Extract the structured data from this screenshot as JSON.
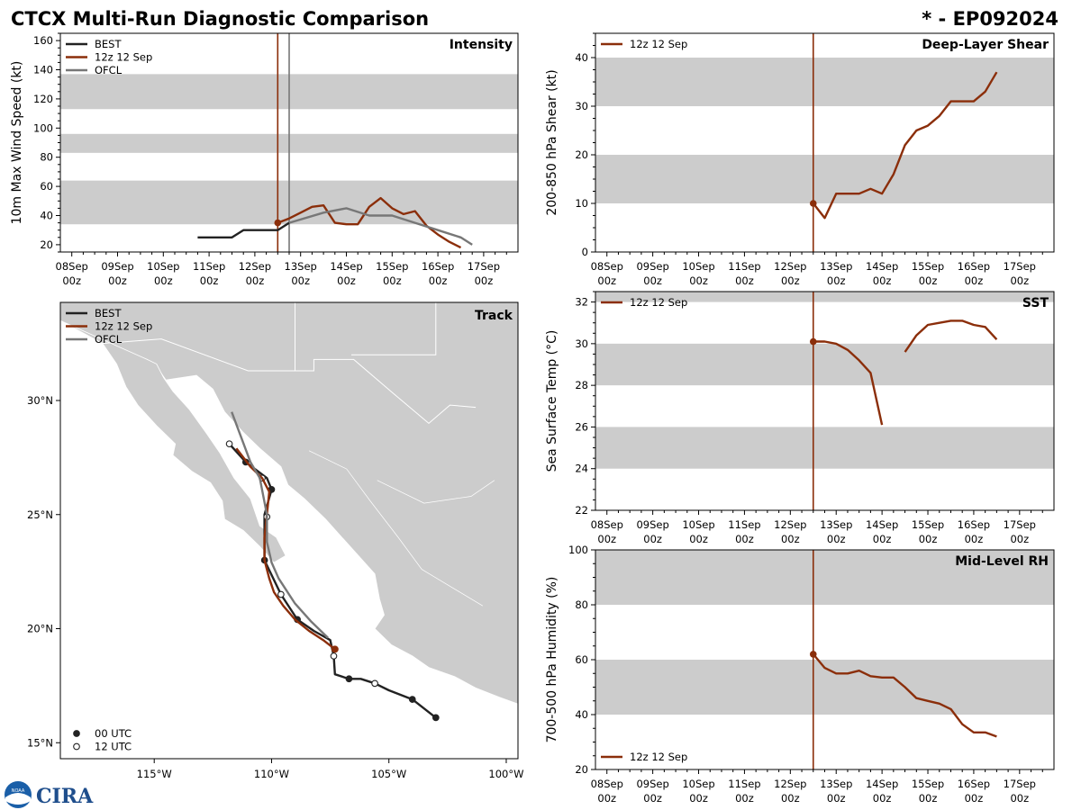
{
  "header": {
    "title": "CTCX Multi-Run Diagnostic Comparison",
    "storm": "* - EP092024"
  },
  "colors": {
    "best": "#222222",
    "run": "#8b2e0a",
    "ofcl": "#777777",
    "band": "#cccccc",
    "land": "#cccccc"
  },
  "time_ticks": {
    "days": [
      "08Sep",
      "09Sep",
      "10Sep",
      "11Sep",
      "12Sep",
      "13Sep",
      "14Sep",
      "15Sep",
      "16Sep",
      "17Sep"
    ],
    "hour": "00z"
  },
  "run_time": 4.5,
  "ofcl_time": 4.75,
  "chart_data": [
    {
      "id": "intensity",
      "type": "line",
      "title": "Intensity",
      "ylabel": "10m Max Wind Speed (kt)",
      "ylim": [
        15,
        165
      ],
      "yticks": [
        20,
        40,
        60,
        80,
        100,
        120,
        140,
        160
      ],
      "bands": [
        [
          34,
          64
        ],
        [
          83,
          96
        ],
        [
          113,
          137
        ]
      ],
      "legend": [
        "BEST",
        "12z 12 Sep",
        "OFCL"
      ],
      "series": [
        {
          "name": "BEST",
          "key": "best",
          "x": [
            2.75,
            3.5,
            3.75,
            4.0,
            4.25,
            4.5,
            4.75
          ],
          "y": [
            25,
            25,
            30,
            30,
            30,
            30,
            35
          ]
        },
        {
          "name": "12z 12 Sep",
          "key": "run",
          "marker_first": true,
          "x": [
            4.5,
            4.75,
            5.0,
            5.25,
            5.5,
            5.75,
            6.0,
            6.25,
            6.5,
            6.75,
            7.0,
            7.25,
            7.5,
            7.75,
            8.0,
            8.25,
            8.5
          ],
          "y": [
            35,
            38,
            42,
            46,
            47,
            35,
            34,
            34,
            46,
            52,
            45,
            41,
            43,
            33,
            27,
            22,
            18
          ]
        },
        {
          "name": "OFCL",
          "key": "ofcl",
          "x": [
            4.75,
            5.5,
            6.0,
            6.5,
            7.0,
            7.5,
            8.0,
            8.5,
            8.75
          ],
          "y": [
            35,
            42,
            45,
            40,
            40,
            35,
            30,
            25,
            20
          ]
        }
      ]
    },
    {
      "id": "shear",
      "type": "line",
      "title": "Deep-Layer Shear",
      "ylabel": "200-850 hPa Shear (kt)",
      "ylim": [
        0,
        45
      ],
      "yticks": [
        0,
        10,
        20,
        30,
        40
      ],
      "bands": [
        [
          10,
          20
        ],
        [
          30,
          40
        ]
      ],
      "legend": [
        "12z 12 Sep"
      ],
      "series": [
        {
          "name": "12z 12 Sep",
          "key": "run",
          "marker_first": true,
          "x": [
            4.5,
            4.75,
            5.0,
            5.25,
            5.5,
            5.75,
            6.0,
            6.25,
            6.5,
            6.75,
            7.0,
            7.25,
            7.5,
            7.75,
            8.0,
            8.25,
            8.5
          ],
          "y": [
            10,
            7,
            12,
            12,
            12,
            13,
            12,
            16,
            22,
            25,
            26,
            28,
            31,
            31,
            31,
            33,
            37
          ]
        }
      ]
    },
    {
      "id": "sst",
      "type": "line",
      "title": "SST",
      "ylabel": "Sea Surface Temp (°C)",
      "ylim": [
        22,
        32.5
      ],
      "yticks": [
        22,
        24,
        26,
        28,
        30,
        32
      ],
      "bands": [
        [
          24,
          26
        ],
        [
          28,
          30
        ],
        [
          32,
          34
        ]
      ],
      "legend": [
        "12z 12 Sep"
      ],
      "series": [
        {
          "name": "12z 12 Sep",
          "key": "run",
          "marker_first": true,
          "x": [
            4.5,
            4.75,
            5.0,
            5.25,
            5.5,
            5.75,
            6.0
          ],
          "y": [
            30.1,
            30.1,
            30.0,
            29.7,
            29.2,
            28.6,
            26.1
          ]
        },
        {
          "name": "12z 12 Sep",
          "key": "run",
          "x": [
            6.5,
            6.75,
            7.0,
            7.25,
            7.5,
            7.75,
            8.0,
            8.25,
            8.5
          ],
          "y": [
            29.6,
            30.4,
            30.9,
            31.0,
            31.1,
            31.1,
            30.9,
            30.8,
            30.2
          ]
        }
      ]
    },
    {
      "id": "rh",
      "type": "line",
      "title": "Mid-Level RH",
      "ylabel": "700-500 hPa Humidity (%)",
      "ylim": [
        20,
        100
      ],
      "yticks": [
        20,
        40,
        60,
        80,
        100
      ],
      "bands": [
        [
          40,
          60
        ],
        [
          80,
          100
        ]
      ],
      "legend": [
        "12z 12 Sep"
      ],
      "series": [
        {
          "name": "12z 12 Sep",
          "key": "run",
          "marker_first": true,
          "x": [
            4.5,
            4.75,
            5.0,
            5.25,
            5.5,
            5.75,
            6.0,
            6.25,
            6.5,
            6.75,
            7.0,
            7.25,
            7.5,
            7.75,
            8.0,
            8.25,
            8.5
          ],
          "y": [
            62,
            57,
            55,
            55,
            56,
            54,
            53.5,
            53.5,
            50,
            46,
            45,
            44,
            42,
            36.5,
            33.5,
            33.5,
            32
          ]
        }
      ]
    },
    {
      "id": "track",
      "type": "scatter",
      "title": "Track",
      "xlim": [
        -119,
        -99.5
      ],
      "ylim": [
        14.3,
        34.3
      ],
      "xtick_values": [
        -115,
        -110,
        -105,
        -100
      ],
      "xtick_labels": [
        "115°W",
        "110°W",
        "105°W",
        "100°W"
      ],
      "ytick_values": [
        15,
        20,
        25,
        30
      ],
      "ytick_labels": [
        "15°N",
        "20°N",
        "25°N",
        "30°N"
      ],
      "legend": [
        "BEST",
        "12z 12 Sep",
        "OFCL"
      ],
      "marker_legend": [
        "00 UTC",
        "12 UTC"
      ],
      "series": [
        {
          "name": "BEST",
          "key": "best",
          "lon": [
            -103.0,
            -104.0,
            -105.0,
            -105.6,
            -106.2,
            -106.7,
            -107.3,
            -107.35,
            -107.5,
            -108.2,
            -108.9,
            -109.6,
            -110.3,
            -110.3,
            -110.0,
            -110.2,
            -111.1,
            -111.8
          ],
          "lat": [
            16.1,
            16.9,
            17.3,
            17.6,
            17.8,
            17.8,
            18.0,
            18.8,
            19.5,
            19.9,
            20.4,
            21.5,
            23.0,
            25.0,
            26.1,
            26.6,
            27.3,
            28.1
          ],
          "markers": [
            [
              16.1,
              -103.0,
              0
            ],
            [
              16.9,
              -104.0,
              0
            ],
            [
              17.6,
              -105.6,
              1
            ],
            [
              17.8,
              -106.7,
              0
            ],
            [
              18.8,
              -107.35,
              1
            ],
            [
              20.4,
              -108.9,
              0
            ],
            [
              21.5,
              -109.6,
              1
            ],
            [
              23.0,
              -110.3,
              0
            ],
            [
              24.9,
              -110.2,
              1
            ],
            [
              26.1,
              -110.0,
              0
            ],
            [
              26.6,
              -110.4,
              1
            ],
            [
              27.3,
              -111.1,
              0
            ],
            [
              28.1,
              -111.8,
              1
            ]
          ]
        },
        {
          "name": "12z 12 Sep",
          "key": "run",
          "lon": [
            -107.3,
            -107.8,
            -108.4,
            -109.0,
            -109.5,
            -109.9,
            -110.1,
            -110.3,
            -110.3,
            -110.2,
            -110.1,
            -110.4,
            -110.9,
            -111.5
          ],
          "lat": [
            19.1,
            19.5,
            19.9,
            20.4,
            21.0,
            21.6,
            22.2,
            23.0,
            24.0,
            25.0,
            26.0,
            26.6,
            27.1,
            27.9
          ],
          "marker_first": true
        },
        {
          "name": "OFCL",
          "key": "ofcl",
          "lon": [
            -107.6,
            -108.3,
            -109.0,
            -109.7,
            -110.0,
            -110.2,
            -110.2,
            -110.5,
            -110.9,
            -111.7
          ],
          "lat": [
            19.6,
            20.3,
            21.1,
            22.2,
            22.9,
            23.8,
            25.0,
            26.6,
            27.3,
            29.5
          ]
        }
      ]
    }
  ],
  "footer": {
    "logo_text": "CIRA",
    "seal_text": "NOAA"
  }
}
